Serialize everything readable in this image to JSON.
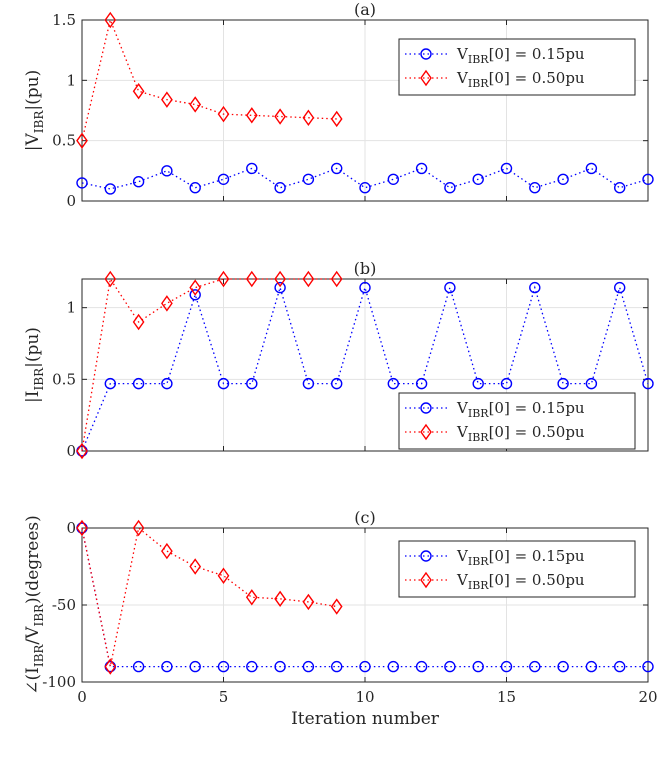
{
  "chart_data": [
    {
      "type": "line",
      "title": "(a)",
      "ylabel_main": "|V",
      "ylabel_sub": "IBR",
      "ylabel_tail": "|(pu)",
      "xlim": [
        0,
        20
      ],
      "ylim": [
        0,
        1.5
      ],
      "xticks": [
        0,
        5,
        10,
        15,
        20
      ],
      "yticks": [
        0,
        0.5,
        1,
        1.5
      ],
      "ytick_labels": [
        "0",
        "0.5",
        "1",
        "1.5"
      ],
      "grid": true,
      "legend_position": "top-right",
      "series": [
        {
          "name": "V_IBR[0] = 0.15pu",
          "legend_main": "V",
          "legend_sub": "IBR",
          "legend_tail": "[0] = 0.15pu",
          "color": "#0000ff",
          "marker": "circle",
          "x": [
            0,
            1,
            2,
            3,
            4,
            5,
            6,
            7,
            8,
            9,
            10,
            11,
            12,
            13,
            14,
            15,
            16,
            17,
            18,
            19,
            20
          ],
          "y": [
            0.15,
            0.1,
            0.16,
            0.25,
            0.11,
            0.18,
            0.27,
            0.11,
            0.18,
            0.27,
            0.11,
            0.18,
            0.27,
            0.11,
            0.18,
            0.27,
            0.11,
            0.18,
            0.27,
            0.11,
            0.18
          ]
        },
        {
          "name": "V_IBR[0] = 0.50pu",
          "legend_main": "V",
          "legend_sub": "IBR",
          "legend_tail": "[0] = 0.50pu",
          "color": "#ff0000",
          "marker": "diamond",
          "x": [
            0,
            1,
            2,
            3,
            4,
            5,
            6,
            7,
            8,
            9
          ],
          "y": [
            0.5,
            1.5,
            0.91,
            0.84,
            0.8,
            0.72,
            0.71,
            0.7,
            0.69,
            0.68
          ]
        }
      ]
    },
    {
      "type": "line",
      "title": "(b)",
      "ylabel_main": "|I",
      "ylabel_sub": "IBR",
      "ylabel_tail": "|(pu)",
      "xlim": [
        0,
        20
      ],
      "ylim": [
        0,
        1.2
      ],
      "xticks": [
        0,
        5,
        10,
        15,
        20
      ],
      "yticks": [
        0,
        0.5,
        1
      ],
      "ytick_labels": [
        "0",
        "0.5",
        "1"
      ],
      "grid": true,
      "legend_position": "bottom-right",
      "series": [
        {
          "name": "V_IBR[0] = 0.15pu",
          "legend_main": "V",
          "legend_sub": "IBR",
          "legend_tail": "[0] = 0.15pu",
          "color": "#0000ff",
          "marker": "circle",
          "x": [
            0,
            1,
            2,
            3,
            4,
            5,
            6,
            7,
            8,
            9,
            10,
            11,
            12,
            13,
            14,
            15,
            16,
            17,
            18,
            19,
            20
          ],
          "y": [
            0,
            0.47,
            0.47,
            0.47,
            1.09,
            0.47,
            0.47,
            1.14,
            0.47,
            0.47,
            1.14,
            0.47,
            0.47,
            1.14,
            0.47,
            0.47,
            1.14,
            0.47,
            0.47,
            1.14,
            0.47
          ]
        },
        {
          "name": "V_IBR[0] = 0.50pu",
          "legend_main": "V",
          "legend_sub": "IBR",
          "legend_tail": "[0] = 0.50pu",
          "color": "#ff0000",
          "marker": "diamond",
          "x": [
            0,
            1,
            2,
            3,
            4,
            5,
            6,
            7,
            8,
            9
          ],
          "y": [
            0,
            1.2,
            0.9,
            1.03,
            1.14,
            1.2,
            1.2,
            1.2,
            1.2,
            1.2
          ]
        }
      ]
    },
    {
      "type": "line",
      "title": "(c)",
      "ylabel_main": "∠(I",
      "ylabel_sub": "IBR",
      "ylabel_mid": "/V",
      "ylabel_sub2": "IBR",
      "ylabel_tail": ")(degrees)",
      "xlabel": "Iteration number",
      "xlim": [
        0,
        20
      ],
      "ylim": [
        -100,
        0
      ],
      "xticks": [
        0,
        5,
        10,
        15,
        20
      ],
      "xtick_labels": [
        "0",
        "5",
        "10",
        "15",
        "20"
      ],
      "yticks": [
        -100,
        -50,
        0
      ],
      "ytick_labels": [
        "-100",
        "-50",
        "0"
      ],
      "grid": true,
      "legend_position": "top-right",
      "series": [
        {
          "name": "V_IBR[0] = 0.15pu",
          "legend_main": "V",
          "legend_sub": "IBR",
          "legend_tail": "[0] = 0.15pu",
          "color": "#0000ff",
          "marker": "circle",
          "x": [
            0,
            1,
            2,
            3,
            4,
            5,
            6,
            7,
            8,
            9,
            10,
            11,
            12,
            13,
            14,
            15,
            16,
            17,
            18,
            19,
            20
          ],
          "y": [
            0,
            -90,
            -90,
            -90,
            -90,
            -90,
            -90,
            -90,
            -90,
            -90,
            -90,
            -90,
            -90,
            -90,
            -90,
            -90,
            -90,
            -90,
            -90,
            -90,
            -90
          ]
        },
        {
          "name": "V_IBR[0] = 0.50pu",
          "legend_main": "V",
          "legend_sub": "IBR",
          "legend_tail": "[0] = 0.50pu",
          "color": "#ff0000",
          "marker": "diamond",
          "x": [
            0,
            1,
            2,
            3,
            4,
            5,
            6,
            7,
            8,
            9
          ],
          "y": [
            0,
            -90,
            0,
            -15,
            -25,
            -31,
            -45,
            -46,
            -48,
            -51
          ]
        }
      ]
    }
  ]
}
